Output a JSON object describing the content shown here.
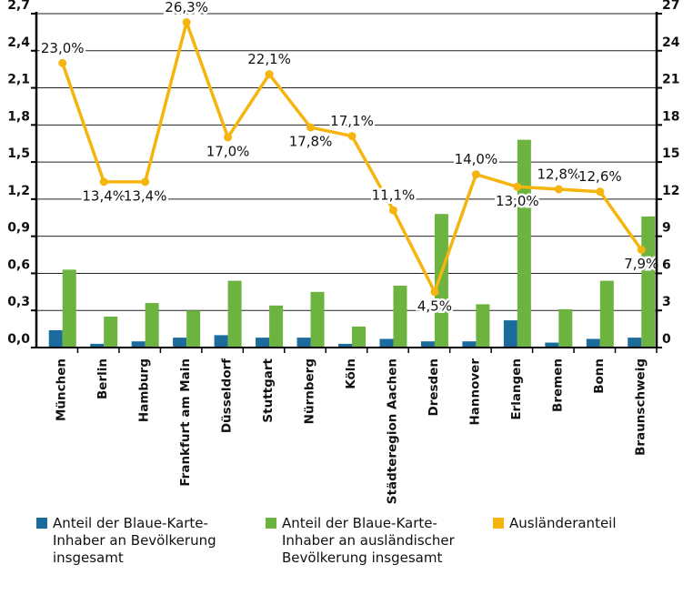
{
  "chart_data": {
    "type": "bar",
    "categories": [
      "München",
      "Berlin",
      "Hamburg",
      "Frankfurt am Main",
      "Düsseldorf",
      "Stuttgart",
      "Nürnberg",
      "Köln",
      "Städteregion Aachen",
      "Dresden",
      "Hannover",
      "Erlangen",
      "Bremen",
      "Bonn",
      "Braunschweig"
    ],
    "series": [
      {
        "name": "Anteil der Blaue-Karte-Inhaber an Bevölkerung insgesamt",
        "color": "#1b6b9c",
        "values": [
          0.14,
          0.03,
          0.05,
          0.08,
          0.1,
          0.08,
          0.08,
          0.03,
          0.07,
          0.05,
          0.05,
          0.22,
          0.04,
          0.07,
          0.08
        ]
      },
      {
        "name": "Anteil der Blaue-Karte-Inhaber an ausländischer Bevölkerung insgesamt",
        "color": "#6db33f",
        "values": [
          0.63,
          0.25,
          0.36,
          0.3,
          0.54,
          0.34,
          0.45,
          0.17,
          0.5,
          1.08,
          0.35,
          1.68,
          0.31,
          0.54,
          1.06
        ]
      },
      {
        "name": "Ausländeranteil",
        "color": "#f6b40e",
        "type": "line",
        "axis": "y2",
        "values": [
          23.0,
          13.4,
          13.4,
          26.3,
          17.0,
          22.1,
          17.8,
          17.1,
          11.1,
          4.5,
          14.0,
          13.0,
          12.8,
          12.6,
          7.9
        ],
        "value_labels": [
          "23,0%",
          "13,4%",
          "13,4%",
          "26,3%",
          "17,0%",
          "22,1%",
          "17,8%",
          "17,1%",
          "11,1%",
          "4,5%",
          "14,0%",
          "13,0%",
          "12,8%",
          "12,6%",
          "7,9%"
        ]
      }
    ],
    "ylim": [
      0,
      2.7
    ],
    "yticks": [
      {
        "value": 0,
        "label": "0,0"
      },
      {
        "value": 0.3,
        "label": "0,3"
      },
      {
        "value": 0.6,
        "label": "0,6"
      },
      {
        "value": 0.9,
        "label": "0,9"
      },
      {
        "value": 1.2,
        "label": "1,2"
      },
      {
        "value": 1.5,
        "label": "1,5"
      },
      {
        "value": 1.8,
        "label": "1,8"
      },
      {
        "value": 2.1,
        "label": "2,1"
      },
      {
        "value": 2.4,
        "label": "2,4"
      },
      {
        "value": 2.7,
        "label": "2,7"
      }
    ],
    "y2lim": [
      0,
      27
    ],
    "y2ticks": [
      0,
      3,
      6,
      9,
      12,
      15,
      18,
      21,
      24,
      27
    ],
    "grid": true
  }
}
